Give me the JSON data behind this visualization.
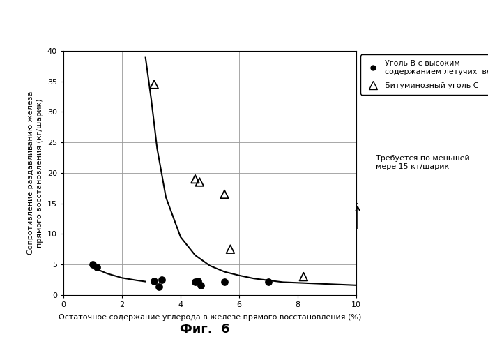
{
  "title": "Фиг.  6",
  "xlabel": "Остаточное содержание углерода в железе прямого восстановления (%)",
  "ylabel": "Сопротивление раздавливанию железа\nпрямого восстановления (кг/шарик)",
  "xlim": [
    0,
    10
  ],
  "ylim": [
    0,
    40
  ],
  "xticks": [
    0,
    2,
    4,
    6,
    8,
    10
  ],
  "yticks": [
    0,
    5,
    10,
    15,
    20,
    25,
    30,
    35,
    40
  ],
  "filled_circles_x": [
    1.0,
    1.15,
    3.1,
    3.25,
    3.35,
    4.5,
    4.6,
    4.68,
    5.5,
    7.0
  ],
  "filled_circles_y": [
    5.0,
    4.5,
    2.3,
    1.3,
    2.5,
    2.1,
    2.3,
    1.6,
    2.1,
    2.1
  ],
  "triangles_x": [
    3.1,
    4.5,
    4.65,
    5.5,
    5.7,
    8.2
  ],
  "triangles_y": [
    34.5,
    19.0,
    18.5,
    16.5,
    7.5,
    3.0
  ],
  "curve_x": [
    2.8,
    3.0,
    3.2,
    3.5,
    4.0,
    4.5,
    5.0,
    5.5,
    6.0,
    6.5,
    7.0,
    7.5,
    8.0,
    8.5,
    9.0,
    9.5,
    10.0
  ],
  "curve_y": [
    39.0,
    32.0,
    24.0,
    16.0,
    9.5,
    6.5,
    4.8,
    3.8,
    3.2,
    2.7,
    2.4,
    2.1,
    2.0,
    1.9,
    1.8,
    1.7,
    1.6
  ],
  "curve2_x": [
    1.0,
    1.5,
    2.0,
    2.5,
    2.8
  ],
  "curve2_y": [
    4.5,
    3.5,
    2.8,
    2.4,
    2.2
  ],
  "annotation_text": "Требуется по меньшей\nмере 15 кт/шарик",
  "legend_label1": "Уголь В с высоким\nсодержанием летучих  веществ",
  "legend_label2": "Битуминозный уголь С",
  "background_color": "#ffffff",
  "grid_color": "#999999",
  "curve_color": "#000000"
}
